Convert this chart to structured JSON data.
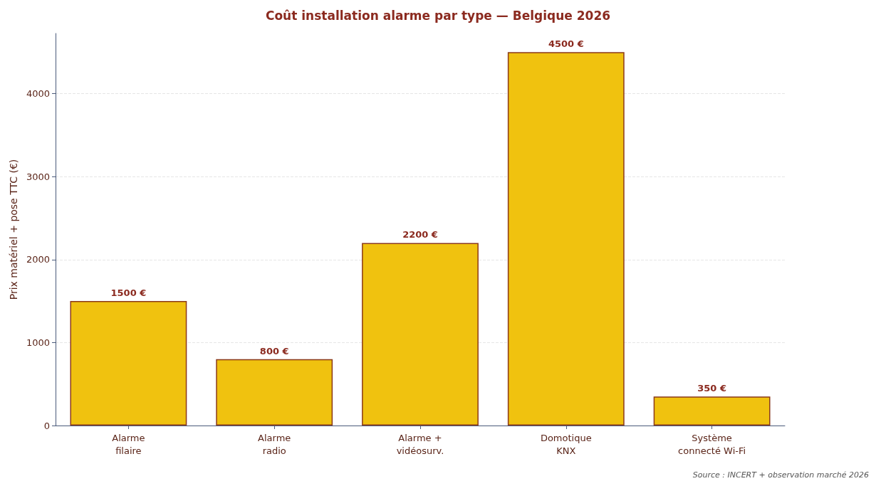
{
  "chart_data": {
    "type": "bar",
    "title": "Coût installation alarme par type — Belgique 2026",
    "ylabel": "Prix matériel + pose TTC (€)",
    "categories": [
      "Alarme\nfilaire",
      "Alarme\nradio",
      "Alarme +\nvidéosurv.",
      "Domotique\nKNX",
      "Système\nconnecté Wi-Fi"
    ],
    "values": [
      1500,
      800,
      2200,
      4500,
      350
    ],
    "value_labels": [
      "1500 €",
      "800 €",
      "2200 €",
      "4500 €",
      "350 €"
    ],
    "color": "#f0c20f",
    "ylim": [
      0,
      4725
    ],
    "yticks": [
      0,
      1000,
      2000,
      3000,
      4000
    ],
    "grid": "y",
    "annotations": [
      "Source : INCERT + observation marché 2026"
    ]
  }
}
